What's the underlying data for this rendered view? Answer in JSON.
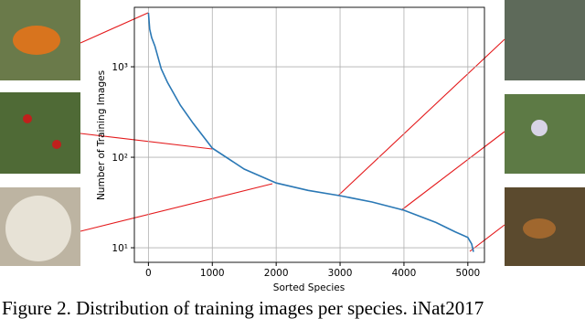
{
  "chart_data": {
    "type": "line",
    "log_y": true,
    "grid": true,
    "color": "#2a78b5",
    "xlabel": "Sorted Species",
    "ylabel": "Number of Training Images",
    "x": [
      0,
      20,
      50,
      100,
      200,
      300,
      500,
      700,
      1000,
      1500,
      2000,
      2500,
      3000,
      3500,
      4000,
      4500,
      4800,
      5000,
      5060,
      5089
    ],
    "values": [
      3940,
      2600,
      2100,
      1700,
      950,
      670,
      376,
      237,
      126,
      74,
      52,
      43,
      37.6,
      32,
      26,
      19,
      15,
      13,
      11,
      9
    ],
    "xlim": [
      -220,
      5260
    ],
    "ylim": [
      6.9,
      4540
    ],
    "xticks": [
      0,
      1000,
      2000,
      3000,
      4000,
      5000
    ],
    "yticks": [
      {
        "value": 10,
        "label": "10¹"
      },
      {
        "value": 100,
        "label": "10²"
      },
      {
        "value": 1000,
        "label": "10³"
      }
    ]
  },
  "caption": "Figure 2. Distribution of training images per species. iNat2017"
}
